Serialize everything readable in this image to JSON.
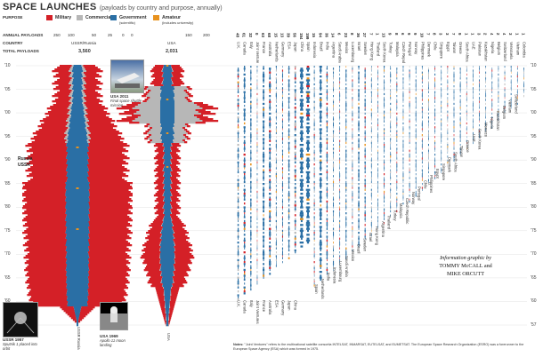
{
  "header": {
    "title": "SPACE LAUNCHES",
    "subtitle": "(payloads by country and purpose, annually)"
  },
  "legend": {
    "purpose_label": "PURPOSE",
    "items": [
      {
        "label": "Military",
        "sub": "",
        "color": "#d42027"
      },
      {
        "label": "Commercial",
        "sub": "",
        "color": "#b7b7b7"
      },
      {
        "label": "Government",
        "sub": "(scientific)",
        "color": "#2a6fa5"
      },
      {
        "label": "Amateur",
        "sub": "(includes university)",
        "color": "#e8921e"
      }
    ]
  },
  "row_labels": {
    "annual": "ANNUAL PAYLOADS",
    "country": "COUNTRY",
    "total": "TOTAL PAYLOADS"
  },
  "axis": {
    "ussr_ticks": [
      "250",
      "100",
      "50",
      "25",
      "0"
    ],
    "usa_ticks": [
      "0",
      "150",
      "200"
    ],
    "ussr_country": "USSR/Russia",
    "usa_country": "USA",
    "ussr_total": "3,560",
    "usa_total": "2,031",
    "russia_label": "Russia",
    "ussr_label": "USSR",
    "ussr_bottom": "USSR Russia",
    "usa_bottom": "USA"
  },
  "years": [
    "'10",
    "'05",
    "'00",
    "'95",
    "'90",
    "'85",
    "'80",
    "'75",
    "'70",
    "'65",
    "'60",
    "'57"
  ],
  "captions": {
    "usa2011_title": "USA 2011",
    "usa2011_text": "Final space shuttle mission",
    "ussr1957_title": "USSR 1957",
    "ussr1957_text": "Sputnik 1 placed into orbit",
    "usa1969_title": "USA 1969",
    "usa1969_text": "Apollo 11 moon landing"
  },
  "country_totals": {
    "top": [
      "48",
      "61",
      "32",
      "0",
      "63",
      "68",
      "15",
      "13",
      "39",
      "56",
      "154",
      "159",
      "15",
      "94",
      "36",
      "14",
      "6",
      "23",
      "8",
      "36",
      "27",
      "7",
      "1",
      "13",
      "9",
      "8",
      "6",
      "9",
      "9",
      "10",
      "7",
      "8",
      "3",
      "3",
      "7",
      "9",
      "1",
      "1",
      "3",
      "2",
      "4",
      "2",
      "4",
      "3",
      "1",
      "1"
    ],
    "names_top": [
      "U.K.",
      "Canada",
      "Italy",
      "Joint Ventures",
      "France",
      "Australia",
      "Netherlands",
      "Germany",
      "ESA",
      "Japan",
      "China",
      "Spain",
      "Indonesia",
      "Brazil",
      "India",
      "Argentina",
      "Saudi Arabia",
      "Mexico",
      "Luxembourg",
      "Israel",
      "Sweden",
      "Hong Kong",
      "Thailand",
      "South Korea",
      "Turkey",
      "Malaysia",
      "Czech Republic",
      "Portugal",
      "Norway",
      "Philippines",
      "Denmark",
      "Chile",
      "Singapore",
      "Egypt",
      "Taiwan",
      "Greece",
      "South Africa",
      "UAE",
      "Pakistan",
      "Kazakhstan",
      "Nigeria",
      "Belgium",
      "Switzerland",
      "Venezuela",
      "Vietnam",
      "Colombia"
    ]
  },
  "country_bottom": [
    "U.K.",
    "Canada",
    "Italy",
    "Joint Ventures",
    "France",
    "Australia",
    "ESA",
    "Germany",
    "Japan",
    "China"
  ],
  "staircase_labels": [
    "Spain",
    "Netherlands",
    "India",
    "Indonesia",
    "Luxembourg",
    "Saudi Arabia",
    "Mexico",
    "Brazil",
    "Sweden",
    "Israel",
    "Hong Kong",
    "Argentina",
    "Thailand",
    "Turkey",
    "Malaysia",
    "Czech Republic",
    "Norway",
    "Portugal",
    "Chile",
    "Philippines",
    "Egypt",
    "Singapore",
    "Denmark",
    "South Africa",
    "Taiwan",
    "Greece",
    "UAE",
    "South Korea",
    "Morocco",
    "Nigeria",
    "Kazakhstan",
    "Belgium",
    "Vietnam",
    "Switzerland"
  ],
  "credit": {
    "line1": "Information graphic by",
    "line2": "TOMMY McCALL and",
    "line3": "MIKE ORCUTT"
  },
  "notes": {
    "label": "Notes:",
    "text": "\"Joint Ventures\" refers to the multinational satellite consortia INTELSAT, INMARSAT, EUTELSAT, and EUMETSAT. The European Space Research Organization (ESRO) was a forerunner to the European Space Agency (ESA) which was formed in 1975."
  },
  "chart_data": {
    "type": "area",
    "title": "SPACE LAUNCHES",
    "subtitle": "(payloads by country and purpose, annually)",
    "x": [
      "1957",
      "1960",
      "1965",
      "1970",
      "1975",
      "1980",
      "1985",
      "1990",
      "1995",
      "2000",
      "2005",
      "2010"
    ],
    "series": [
      {
        "name": "USSR/Russia",
        "values": [
          2,
          8,
          60,
          80,
          95,
          100,
          105,
          80,
          40,
          30,
          25,
          30
        ]
      },
      {
        "name": "USA",
        "values": [
          1,
          30,
          90,
          40,
          30,
          20,
          25,
          35,
          55,
          110,
          50,
          45
        ]
      }
    ]
  }
}
